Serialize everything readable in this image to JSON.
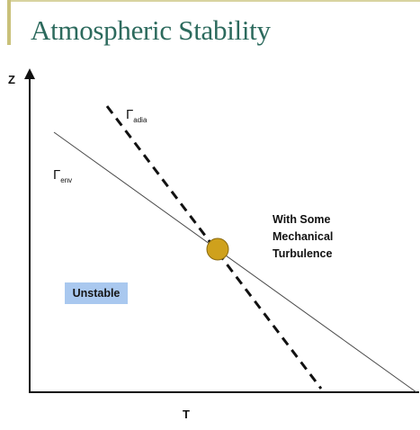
{
  "slide": {
    "title": "Atmospheric Stability",
    "accent_color": "#c9c17a",
    "title_color": "#2c6a5d"
  },
  "diagram": {
    "y_axis_label": "Z",
    "x_axis_label": "T",
    "env_label": {
      "symbol": "Γ",
      "subscript": "env"
    },
    "adia_label": {
      "symbol": "Γ",
      "subscript": "adia"
    },
    "annotation_lines": [
      "With Some",
      "Mechanical",
      "Turbulence"
    ],
    "stability_badge": "Unstable",
    "badge_color": "#a9c8ef",
    "intersection_color": "#cfa11c",
    "env_line_style": "solid-thin",
    "adia_line_style": "dashed-thick"
  }
}
